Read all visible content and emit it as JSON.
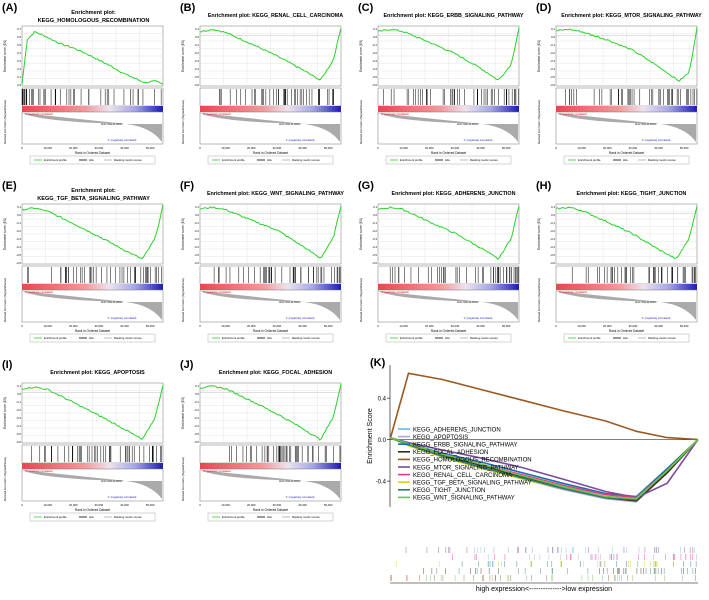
{
  "figure": {
    "common": {
      "ylabel_top": "Enrichment score (ES)",
      "ylabel_bottom": "Ranked list metric (Signal2Noise)",
      "xlabel": "Rank in Ordered Dataset",
      "zero_cross": "Zero cross at 40913",
      "pos_label": "'0' (positively correlated)",
      "neg_label": "'1' (negatively correlated)",
      "legend": [
        "Enrichment profile",
        "Hits",
        "Ranking metric scores"
      ],
      "x_ticks": [
        "0",
        "10,000",
        "20,000",
        "30,000",
        "40,000",
        "50,000"
      ]
    }
  },
  "chart_data": [
    {
      "type": "line",
      "letter": "(A)",
      "title_line1": "Enrichment plot:",
      "title_line2": "KEGG_HOMOLOGOUS_RECOMBINATION",
      "shape": "pos",
      "y_ticks": [
        "0.7",
        "0.6",
        "0.5",
        "0.4",
        "0.3",
        "0.2",
        "0.1",
        "0.0"
      ],
      "x": [
        0,
        2000,
        5000,
        10000,
        15000,
        20000,
        25000,
        30000,
        35000,
        40000,
        45000,
        48000,
        52000,
        55000
      ],
      "es": [
        0.0,
        0.55,
        0.65,
        0.58,
        0.5,
        0.45,
        0.38,
        0.3,
        0.22,
        0.13,
        0.06,
        0.02,
        0.04,
        0.0
      ]
    },
    {
      "type": "line",
      "letter": "(B)",
      "title_line1": "Enrichment plot: KEGG_RENAL_CELL_CARCINOMA",
      "title_line2": "",
      "shape": "neg",
      "y_ticks": [
        "0.1",
        "0.0",
        "-0.1",
        "-0.2",
        "-0.3",
        "-0.4",
        "-0.5",
        "-0.6"
      ],
      "x": [
        0,
        5000,
        10000,
        20000,
        30000,
        40000,
        47000,
        52000,
        55000
      ],
      "es": [
        0.05,
        0.08,
        0.04,
        -0.1,
        -0.25,
        -0.42,
        -0.55,
        -0.3,
        0.1
      ]
    },
    {
      "type": "line",
      "letter": "(C)",
      "title_line1": "Enrichment plot: KEGG_ERBB_SIGNALING_PATHWAY",
      "title_line2": "",
      "shape": "neg",
      "y_ticks": [
        "0.1",
        "0.0",
        "-0.1",
        "-0.2",
        "-0.3",
        "-0.4",
        "-0.5",
        "-0.6"
      ],
      "x": [
        0,
        5000,
        10000,
        20000,
        30000,
        40000,
        47000,
        52000,
        55000
      ],
      "es": [
        0.05,
        0.08,
        0.05,
        -0.08,
        -0.22,
        -0.4,
        -0.55,
        -0.35,
        0.1
      ]
    },
    {
      "type": "line",
      "letter": "(D)",
      "title_line1": "Enrichment plot: KEGG_MTOR_SIGNALING_PATHWAY",
      "title_line2": "",
      "shape": "neg",
      "y_ticks": [
        "0.1",
        "0.0",
        "-0.1",
        "-0.2",
        "-0.3",
        "-0.4",
        "-0.5",
        "-0.6"
      ],
      "x": [
        0,
        5000,
        10000,
        20000,
        30000,
        40000,
        48000,
        52000,
        55000
      ],
      "es": [
        0.06,
        0.08,
        0.05,
        -0.05,
        -0.18,
        -0.38,
        -0.56,
        -0.45,
        0.1
      ]
    },
    {
      "type": "line",
      "letter": "(E)",
      "title_line1": "Enrichment plot:",
      "title_line2": "KEGG_TGF_BETA_SIGNALING_PATHWAY",
      "shape": "neg",
      "y_ticks": [
        "0.1",
        "0.0",
        "-0.1",
        "-0.2",
        "-0.3",
        "-0.4",
        "-0.5",
        "-0.6"
      ],
      "x": [
        0,
        5000,
        10000,
        20000,
        30000,
        40000,
        47000,
        52000,
        55000
      ],
      "es": [
        0.05,
        0.07,
        0.03,
        -0.12,
        -0.28,
        -0.45,
        -0.56,
        -0.3,
        0.1
      ]
    },
    {
      "type": "line",
      "letter": "(F)",
      "title_line1": "Enrichment plot: KEGG_WNT_SIGNALING_PATHWAY",
      "title_line2": "",
      "shape": "neg",
      "y_ticks": [
        "0.1",
        "0.0",
        "-0.1",
        "-0.2",
        "-0.3",
        "-0.4",
        "-0.5",
        "-0.6"
      ],
      "x": [
        0,
        5000,
        10000,
        20000,
        30000,
        40000,
        47000,
        52000,
        55000
      ],
      "es": [
        0.06,
        0.08,
        0.05,
        -0.08,
        -0.2,
        -0.4,
        -0.55,
        -0.3,
        0.1
      ]
    },
    {
      "type": "line",
      "letter": "(G)",
      "title_line1": "Enrichment plot: KEGG_ADHERENS_JUNCTION",
      "title_line2": "",
      "shape": "neg",
      "y_ticks": [
        "0.1",
        "0.0",
        "-0.1",
        "-0.2",
        "-0.3",
        "-0.4",
        "-0.5",
        "-0.6"
      ],
      "x": [
        0,
        5000,
        10000,
        20000,
        30000,
        40000,
        47000,
        52000,
        55000
      ],
      "es": [
        0.05,
        0.08,
        0.05,
        -0.1,
        -0.24,
        -0.42,
        -0.56,
        -0.3,
        0.1
      ]
    },
    {
      "type": "line",
      "letter": "(H)",
      "title_line1": "Enrichment plot: KEGG_TIGHT_JUNCTION",
      "title_line2": "",
      "shape": "neg",
      "y_ticks": [
        "0.1",
        "0.0",
        "-0.1",
        "-0.2",
        "-0.3",
        "-0.4",
        "-0.5",
        "-0.6"
      ],
      "x": [
        0,
        5000,
        10000,
        20000,
        30000,
        40000,
        47000,
        52000,
        55000
      ],
      "es": [
        0.06,
        0.08,
        0.04,
        -0.1,
        -0.25,
        -0.44,
        -0.56,
        -0.3,
        0.1
      ]
    },
    {
      "type": "line",
      "letter": "(I)",
      "title_line1": "Enrichment plot: KEGG_APOPTOSIS",
      "title_line2": "",
      "shape": "neg",
      "y_ticks": [
        "0.1",
        "0.0",
        "-0.1",
        "-0.2",
        "-0.3",
        "-0.4",
        "-0.5",
        "-0.6"
      ],
      "x": [
        0,
        5000,
        10000,
        20000,
        30000,
        40000,
        47000,
        52000,
        55000
      ],
      "es": [
        0.05,
        0.07,
        0.04,
        -0.12,
        -0.28,
        -0.45,
        -0.58,
        -0.3,
        0.1
      ]
    },
    {
      "type": "line",
      "letter": "(J)",
      "title_line1": "Enrichment plot: KEGG_FOCAL_ADHESION",
      "title_line2": "",
      "shape": "neg",
      "y_ticks": [
        "0.1",
        "0.0",
        "-0.1",
        "-0.2",
        "-0.3",
        "-0.4",
        "-0.5",
        "-0.6"
      ],
      "x": [
        0,
        5000,
        10000,
        20000,
        30000,
        40000,
        47000,
        52000,
        55000
      ],
      "es": [
        0.06,
        0.08,
        0.05,
        -0.1,
        -0.26,
        -0.44,
        -0.58,
        -0.3,
        0.1
      ]
    },
    {
      "type": "line",
      "letter": "(K)",
      "ylabel": "Enrichment Score",
      "y_ticks": [
        "0.4",
        "0.0",
        "-0.4"
      ],
      "ylim": [
        -0.65,
        0.72
      ],
      "xlabel": "high expression<-------------->low expression",
      "series": [
        {
          "name": "KEGG_ADHERENS_JUNCTION",
          "color": "#6bb8e3",
          "values": [
            0.02,
            -0.05,
            -0.15,
            -0.26,
            -0.36,
            -0.46,
            -0.55,
            -0.58,
            -0.3,
            0.0
          ]
        },
        {
          "name": "KEGG_APOPTOSIS",
          "color": "#b3a6cf",
          "values": [
            0.02,
            -0.06,
            -0.16,
            -0.27,
            -0.38,
            -0.48,
            -0.57,
            -0.6,
            -0.32,
            0.0
          ]
        },
        {
          "name": "KEGG_ERBB_SIGNALING_PATHWAY",
          "color": "#1f6fb0",
          "values": [
            0.02,
            -0.04,
            -0.13,
            -0.22,
            -0.32,
            -0.42,
            -0.52,
            -0.55,
            -0.28,
            0.0
          ]
        },
        {
          "name": "KEGG_FOCAL_ADHESION",
          "color": "#3a2a1a",
          "values": [
            0.02,
            -0.05,
            -0.15,
            -0.25,
            -0.36,
            -0.47,
            -0.56,
            -0.59,
            -0.32,
            0.0
          ]
        },
        {
          "name": "KEGG_HOMOLOGOUS_RECOMBINATION",
          "color": "#9b5a22",
          "values": [
            0.0,
            0.64,
            0.58,
            0.48,
            0.38,
            0.28,
            0.18,
            0.08,
            0.02,
            0.0
          ]
        },
        {
          "name": "KEGG_MTOR_SIGNALING_PATHWAY",
          "color": "#7a4b9c",
          "values": [
            0.02,
            -0.03,
            -0.1,
            -0.18,
            -0.27,
            -0.38,
            -0.5,
            -0.56,
            -0.42,
            0.0
          ]
        },
        {
          "name": "KEGG_RENAL_CELL_CARCINOMA",
          "color": "#e23a8a",
          "values": [
            0.02,
            -0.05,
            -0.14,
            -0.24,
            -0.34,
            -0.44,
            -0.53,
            -0.56,
            -0.3,
            0.0
          ]
        },
        {
          "name": "KEGG_TGF_BETA_SIGNALING_PATHWAY",
          "color": "#d8d02a",
          "values": [
            0.02,
            -0.06,
            -0.17,
            -0.28,
            -0.38,
            -0.47,
            -0.55,
            -0.57,
            -0.3,
            0.0
          ]
        },
        {
          "name": "KEGG_TIGHT_JUNCTION",
          "color": "#2f7d6d",
          "values": [
            0.02,
            -0.05,
            -0.16,
            -0.27,
            -0.37,
            -0.47,
            -0.56,
            -0.58,
            -0.3,
            0.0
          ]
        },
        {
          "name": "KEGG_WNT_SIGNALING_PATHWAY",
          "color": "#6cc24a",
          "values": [
            0.02,
            -0.04,
            -0.14,
            -0.24,
            -0.35,
            -0.45,
            -0.55,
            -0.57,
            -0.3,
            0.0
          ]
        }
      ],
      "x_fraction": [
        0,
        0.06,
        0.17,
        0.3,
        0.43,
        0.56,
        0.7,
        0.8,
        0.9,
        1.0
      ]
    }
  ]
}
